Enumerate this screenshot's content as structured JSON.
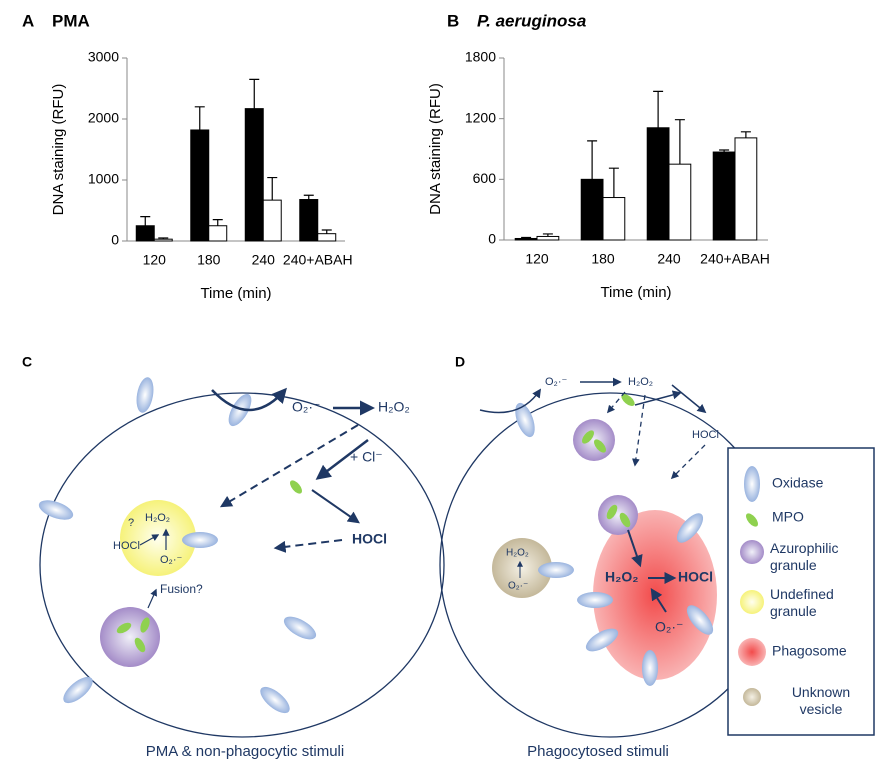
{
  "chart_data": [
    {
      "type": "bar",
      "panel": "A",
      "title": "PMA",
      "ylabel": "DNA staining (RFU)",
      "xlabel": "Time (min)",
      "categories": [
        "120",
        "180",
        "240",
        "240+ABAH"
      ],
      "series": [
        {
          "color": "#000000",
          "values": [
            250,
            1820,
            2170,
            680
          ],
          "errors": [
            150,
            380,
            480,
            70
          ]
        },
        {
          "color": "#ffffff",
          "values": [
            30,
            250,
            670,
            120
          ],
          "errors": [
            20,
            100,
            370,
            60
          ]
        }
      ],
      "ylim": [
        0,
        3000
      ],
      "yticks": [
        0,
        1000,
        2000,
        3000
      ]
    },
    {
      "type": "bar",
      "panel": "B",
      "title": "P. aeruginosa",
      "ylabel": "DNA staining (RFU)",
      "xlabel": "Time (min)",
      "categories": [
        "120",
        "180",
        "240",
        "240+ABAH"
      ],
      "series": [
        {
          "color": "#000000",
          "values": [
            15,
            600,
            1110,
            870
          ],
          "errors": [
            10,
            380,
            360,
            20
          ]
        },
        {
          "color": "#ffffff",
          "values": [
            35,
            420,
            750,
            1010
          ],
          "errors": [
            25,
            290,
            440,
            60
          ]
        }
      ],
      "ylim": [
        0,
        1800
      ],
      "yticks": [
        0,
        600,
        1200,
        1800
      ]
    }
  ],
  "diagram_c": {
    "panel": "C",
    "o2": "O₂·⁻",
    "h2o2": "H₂O₂",
    "cl": "+ Cl⁻",
    "hocl": "HOCl",
    "inner_q": "?",
    "inner_h2o2": "H₂O₂",
    "inner_hocl": "HOCl",
    "inner_o2": "O₂·⁻",
    "fusion": "Fusion?",
    "caption": "PMA & non-phagocytic stimuli"
  },
  "diagram_d": {
    "panel": "D",
    "o2": "O₂·⁻",
    "h2o2": "H₂O₂",
    "hocl": "HOCl",
    "vesicle_h2o2": "H₂O₂",
    "vesicle_o2": "O₂·⁻",
    "phago_h2o2": "H₂O₂",
    "phago_hocl": "HOCl",
    "phago_o2": "O₂·⁻",
    "caption": "Phagocytosed stimuli"
  },
  "legend": [
    "Oxidase",
    "MPO",
    "Azurophilic granule",
    "Undefined granule",
    "Phagosome",
    "Unknown vesicle"
  ]
}
